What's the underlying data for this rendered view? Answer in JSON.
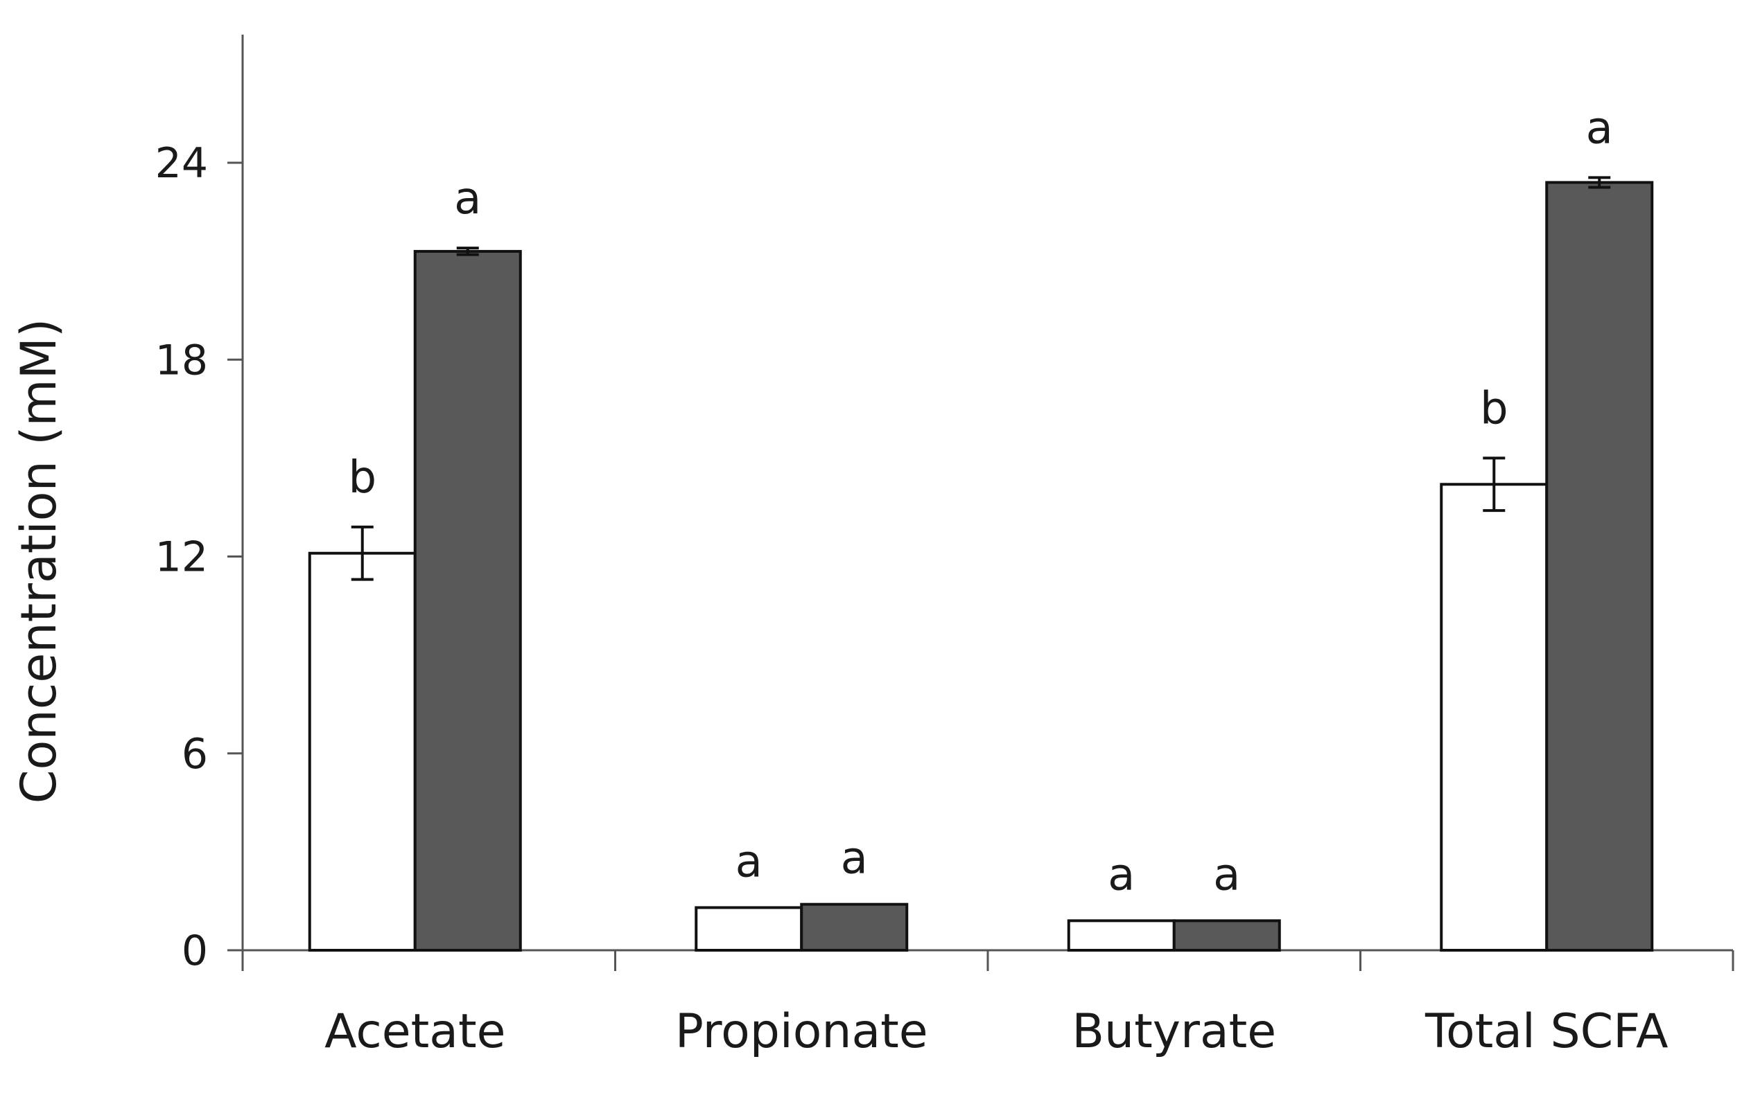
{
  "chart_data": {
    "type": "bar",
    "title": "",
    "xlabel": "",
    "ylabel": "Concentration (mM)",
    "ylim": [
      0,
      28
    ],
    "yticks": [
      0,
      6,
      12,
      18,
      24
    ],
    "grid": false,
    "legend": "none",
    "categories": [
      "Acetate",
      "Propionate",
      "Butyrate",
      "Total SCFA"
    ],
    "series": [
      {
        "color": "#ffffff",
        "values": [
          12.1,
          1.3,
          0.9,
          14.2
        ],
        "errors": [
          0.8,
          0,
          0,
          0.8
        ],
        "sig_labels": [
          "b",
          "a",
          "a",
          "b"
        ]
      },
      {
        "color": "#595959",
        "values": [
          21.3,
          1.4,
          0.9,
          23.4
        ],
        "errors": [
          0.1,
          0,
          0,
          0.15
        ],
        "sig_labels": [
          "a",
          "a",
          "a",
          "a"
        ]
      }
    ]
  }
}
